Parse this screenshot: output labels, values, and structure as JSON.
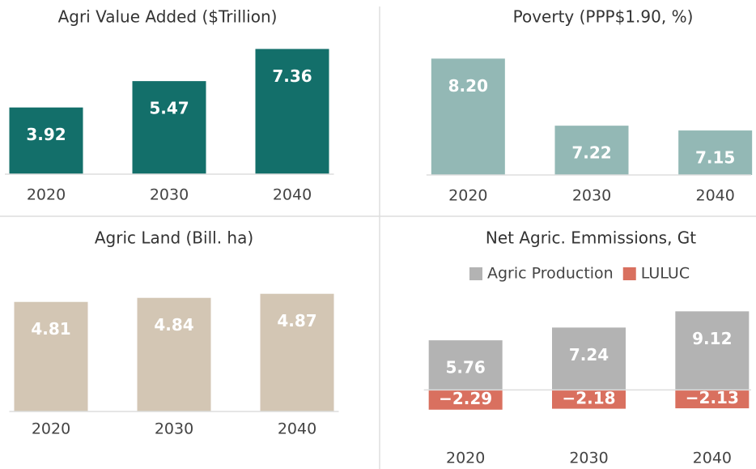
{
  "chart_data": [
    {
      "type": "bar",
      "title": "Agri Value Added ($Trillion)",
      "categories": [
        "2020",
        "2030",
        "2040"
      ],
      "values": [
        3.92,
        5.47,
        7.36
      ],
      "color": "#136f6a",
      "ylim": [
        0,
        8
      ]
    },
    {
      "type": "bar",
      "title": "Poverty (PPP$1.90, %)",
      "categories": [
        "2020",
        "2030",
        "2040"
      ],
      "values": [
        8.2,
        7.22,
        7.15
      ],
      "value_labels": [
        "8.20",
        "7.22",
        "7.15"
      ],
      "color": "#93b8b5",
      "ylim": [
        6.5,
        8.5
      ]
    },
    {
      "type": "bar",
      "title": "Agric Land  (Bill. ha)",
      "categories": [
        "2020",
        "2030",
        "2040"
      ],
      "values": [
        4.81,
        4.84,
        4.87
      ],
      "color": "#d3c6b4",
      "ylim": [
        4,
        5
      ]
    },
    {
      "type": "bar",
      "title": "Net Agric. Emmissions, Gt",
      "categories": [
        "2020",
        "2030",
        "2040"
      ],
      "legend": "top",
      "series": [
        {
          "name": "Agric Production",
          "color": "#b3b3b3",
          "values": [
            5.76,
            7.24,
            9.12
          ]
        },
        {
          "name": "LULUC",
          "color": "#d9705f",
          "values": [
            -2.29,
            -2.18,
            -2.13
          ],
          "value_labels": [
            "−2.29",
            "−2.18",
            "−2.13"
          ]
        }
      ],
      "ylim": [
        -2.5,
        10
      ]
    }
  ]
}
